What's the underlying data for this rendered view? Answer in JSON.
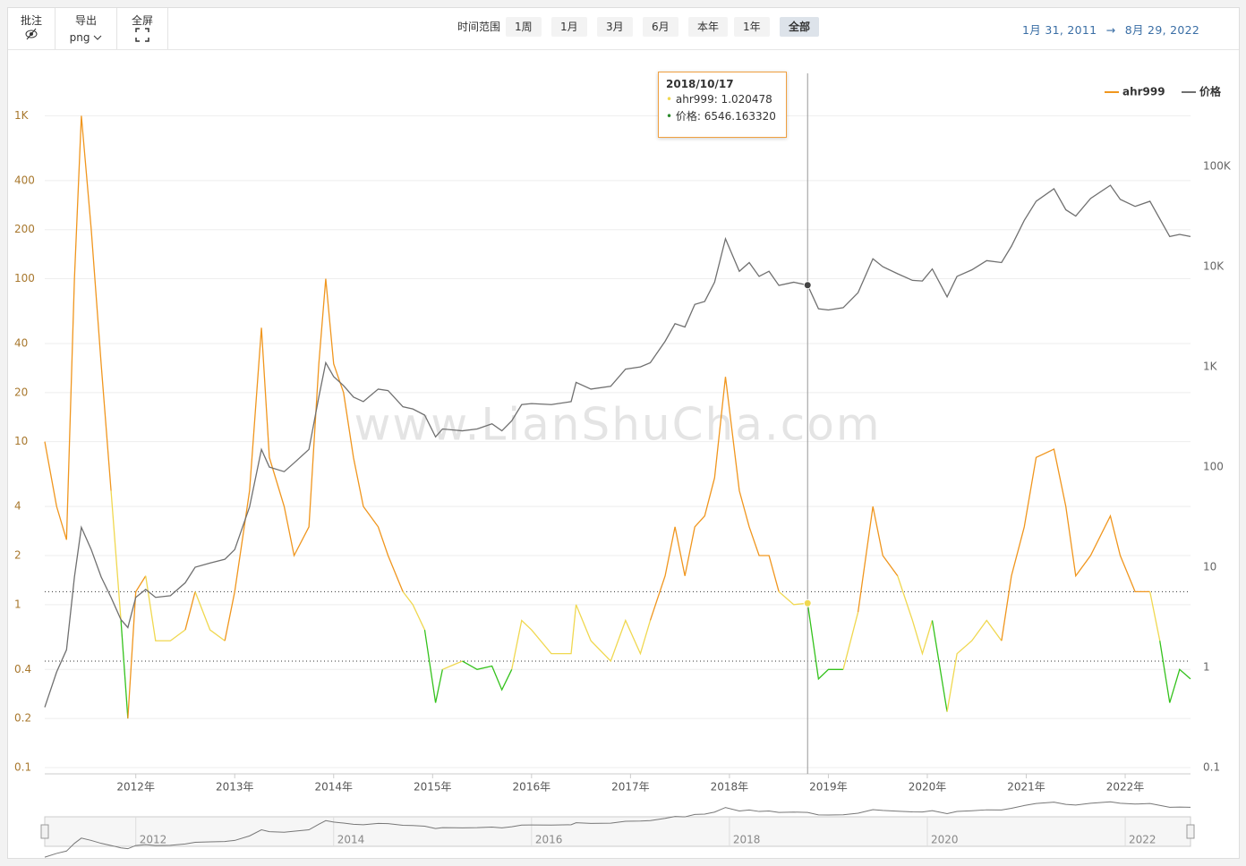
{
  "ui": {
    "annotate": "批注",
    "export": "导出",
    "format": "png",
    "fullscreen": "全屏",
    "range_label": "时间范围",
    "ranges": [
      "1周",
      "1月",
      "3月",
      "6月",
      "本年",
      "1年",
      "全部"
    ],
    "active_range": "全部",
    "date_from": "1月 31, 2011",
    "arrow": "→",
    "date_to": "8月 29, 2022",
    "watermark": "www.LianShuCha.com"
  },
  "tooltip": {
    "date": "2018/10/17",
    "lines": [
      "ahr999: 1.020478",
      "价格: 6546.163320"
    ]
  },
  "chart_data": {
    "type": "line",
    "log_scale": true,
    "grid": true,
    "legend": "top-right",
    "x": [
      2011.08,
      2011.2,
      2011.3,
      2011.38,
      2011.45,
      2011.55,
      2011.65,
      2011.75,
      2011.85,
      2011.92,
      2012.0,
      2012.1,
      2012.2,
      2012.35,
      2012.5,
      2012.6,
      2012.75,
      2012.9,
      2013.0,
      2013.15,
      2013.27,
      2013.35,
      2013.5,
      2013.6,
      2013.75,
      2013.85,
      2013.92,
      2014.0,
      2014.1,
      2014.2,
      2014.3,
      2014.45,
      2014.55,
      2014.7,
      2014.8,
      2014.92,
      2015.03,
      2015.1,
      2015.3,
      2015.45,
      2015.6,
      2015.7,
      2015.8,
      2015.9,
      2016.0,
      2016.2,
      2016.4,
      2016.45,
      2016.6,
      2016.8,
      2016.95,
      2017.1,
      2017.2,
      2017.35,
      2017.45,
      2017.55,
      2017.65,
      2017.75,
      2017.85,
      2017.96,
      2018.1,
      2018.2,
      2018.3,
      2018.4,
      2018.5,
      2018.65,
      2018.79,
      2018.9,
      2019.0,
      2019.15,
      2019.3,
      2019.45,
      2019.55,
      2019.7,
      2019.85,
      2019.95,
      2020.05,
      2020.2,
      2020.3,
      2020.45,
      2020.6,
      2020.75,
      2020.85,
      2020.98,
      2021.1,
      2021.28,
      2021.4,
      2021.5,
      2021.65,
      2021.85,
      2021.95,
      2022.1,
      2022.25,
      2022.35,
      2022.45,
      2022.55,
      2022.66
    ],
    "series": [
      {
        "name": "ahr999",
        "color": "#f0961e",
        "values": [
          10,
          4,
          2.5,
          100,
          1000,
          200,
          30,
          5,
          0.8,
          0.2,
          1.2,
          1.5,
          0.6,
          0.6,
          0.7,
          1.2,
          0.7,
          0.6,
          1.2,
          5,
          50,
          8,
          4,
          2,
          3,
          30,
          100,
          30,
          20,
          8,
          4,
          3,
          2,
          1.2,
          1,
          0.7,
          0.25,
          0.4,
          0.45,
          0.4,
          0.42,
          0.3,
          0.4,
          0.8,
          0.7,
          0.5,
          0.5,
          1,
          0.6,
          0.45,
          0.8,
          0.5,
          0.8,
          1.5,
          3,
          1.5,
          3,
          3.5,
          6,
          25,
          5,
          3,
          2,
          2,
          1.2,
          1,
          1.020478,
          0.35,
          0.4,
          0.4,
          0.9,
          4,
          2,
          1.5,
          0.8,
          0.5,
          0.8,
          0.22,
          0.5,
          0.6,
          0.8,
          0.6,
          1.5,
          3,
          8,
          9,
          4,
          1.5,
          2,
          3.5,
          2,
          1.2,
          1.2,
          0.6,
          0.25,
          0.4,
          0.35
        ]
      },
      {
        "name": "价格",
        "color": "#707070",
        "axis": "y2",
        "values": [
          0.4,
          0.9,
          1.5,
          8,
          25,
          15,
          8,
          5,
          3,
          2.5,
          5,
          6,
          5,
          5.2,
          7,
          10,
          11,
          12,
          15,
          40,
          150,
          100,
          90,
          110,
          150,
          500,
          1100,
          800,
          650,
          500,
          450,
          600,
          580,
          400,
          380,
          330,
          200,
          240,
          230,
          240,
          270,
          230,
          290,
          420,
          430,
          420,
          450,
          700,
          600,
          640,
          950,
          1000,
          1100,
          1800,
          2700,
          2500,
          4200,
          4500,
          7000,
          19000,
          9000,
          11000,
          8000,
          9000,
          6500,
          7000,
          6546.16332,
          3800,
          3700,
          3900,
          5500,
          12000,
          10000,
          8500,
          7300,
          7200,
          9500,
          5000,
          8000,
          9300,
          11500,
          11000,
          16000,
          29000,
          45000,
          60000,
          37000,
          32000,
          48000,
          65000,
          47000,
          40000,
          45000,
          30000,
          20000,
          21000,
          20000
        ]
      }
    ],
    "reference_lines": [
      1.2,
      0.45
    ],
    "band_colors": [
      "#f0961e",
      "#f0d850",
      "#34c21c"
    ],
    "xlim": [
      2011.08,
      2022.66
    ],
    "xticks": [
      {
        "value": 2012,
        "label": "2012年"
      },
      {
        "value": 2013,
        "label": "2013年"
      },
      {
        "value": 2014,
        "label": "2014年"
      },
      {
        "value": 2015,
        "label": "2015年"
      },
      {
        "value": 2016,
        "label": "2016年"
      },
      {
        "value": 2017,
        "label": "2017年"
      },
      {
        "value": 2018,
        "label": "2018年"
      },
      {
        "value": 2019,
        "label": "2019年"
      },
      {
        "value": 2020,
        "label": "2020年"
      },
      {
        "value": 2021,
        "label": "2021年"
      },
      {
        "value": 2022,
        "label": "2022年"
      }
    ],
    "ylim": [
      0.0915,
      1820
    ],
    "yticks": [
      0.1,
      0.2,
      0.4,
      1,
      2,
      4,
      10,
      20,
      40,
      100,
      200,
      400,
      {
        "value": 1000,
        "label": "1K"
      }
    ],
    "y2lim": [
      0.0866,
      851000
    ],
    "y2ticks": [
      0.1,
      1,
      10,
      100,
      {
        "value": 1000,
        "label": "1K"
      },
      {
        "value": 10000,
        "label": "10K"
      },
      {
        "value": 100000,
        "label": "100K"
      }
    ],
    "navigator_xticks": [
      2012,
      2014,
      2016,
      2018,
      2020,
      2022
    ]
  }
}
